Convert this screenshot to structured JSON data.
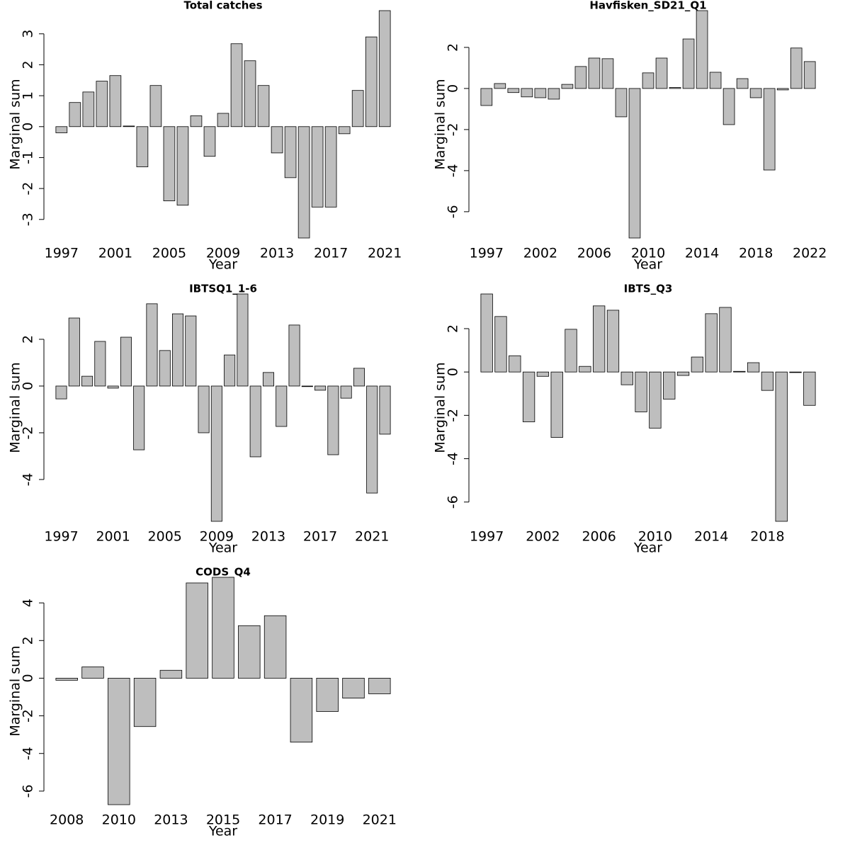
{
  "chart_data": [
    {
      "type": "bar",
      "title": "Total catches",
      "x_label": "Year",
      "y_label": "Marginal sum",
      "color": "#bebebe",
      "categories": [
        "1997",
        null,
        null,
        null,
        "2001",
        null,
        null,
        null,
        "2005",
        null,
        null,
        null,
        "2009",
        null,
        null,
        null,
        "2013",
        null,
        null,
        null,
        "2017",
        null,
        null,
        null,
        "2021"
      ],
      "values": [
        -0.2,
        0.78,
        1.12,
        1.47,
        1.65,
        0.02,
        -1.3,
        1.33,
        -2.4,
        -2.54,
        0.35,
        -0.96,
        0.43,
        2.68,
        2.13,
        1.33,
        -0.85,
        -1.65,
        -3.6,
        -2.6,
        -2.6,
        -0.23,
        1.17,
        2.9,
        3.75
      ],
      "ylim": [
        -3.6,
        3.75
      ],
      "yticks": [
        -3,
        -2,
        -1,
        0,
        1,
        2,
        3
      ]
    },
    {
      "type": "bar",
      "title": "Havfisken_SD21_Q1",
      "x_label": "Year",
      "y_label": "Marginal sum",
      "color": "#bebebe",
      "categories": [
        "1997",
        null,
        null,
        null,
        "2002",
        null,
        null,
        null,
        "2006",
        null,
        null,
        null,
        "2010",
        null,
        null,
        null,
        "2014",
        null,
        null,
        null,
        "2018",
        null,
        null,
        null,
        "2022"
      ],
      "values": [
        -0.83,
        0.24,
        -0.2,
        -0.41,
        -0.45,
        -0.52,
        0.2,
        1.07,
        1.48,
        1.45,
        -1.38,
        -7.28,
        0.76,
        1.48,
        0.05,
        2.41,
        3.79,
        0.79,
        -1.76,
        0.48,
        -0.45,
        -3.97,
        -0.07,
        1.97,
        1.31
      ],
      "ylim": [
        -7.28,
        3.79
      ],
      "yticks": [
        -6,
        -4,
        -2,
        0,
        2
      ]
    },
    {
      "type": "bar",
      "title": "IBTSQ1_1-6",
      "x_label": "Year",
      "y_label": "Marginal sum",
      "color": "#bebebe",
      "categories": [
        "1997",
        null,
        null,
        null,
        "2001",
        null,
        null,
        null,
        "2005",
        null,
        null,
        null,
        "2009",
        null,
        null,
        null,
        "2013",
        null,
        null,
        null,
        "2017",
        null,
        null,
        null,
        "2021",
        null
      ],
      "values": [
        -0.55,
        2.91,
        0.42,
        1.91,
        -0.09,
        2.09,
        -2.73,
        3.52,
        1.52,
        3.09,
        3.0,
        -2.0,
        -5.79,
        1.33,
        3.94,
        -3.03,
        0.58,
        -1.73,
        2.61,
        -0.02,
        -0.18,
        -2.94,
        -0.52,
        0.76,
        -4.58,
        -2.06
      ],
      "ylim": [
        -5.79,
        3.94
      ],
      "yticks": [
        -4,
        -2,
        0,
        2
      ]
    },
    {
      "type": "bar",
      "title": "IBTS_Q3",
      "x_label": "Year",
      "y_label": "Marginal sum",
      "color": "#bebebe",
      "categories": [
        "1997",
        null,
        null,
        null,
        "2002",
        null,
        null,
        null,
        "2006",
        null,
        null,
        null,
        "2010",
        null,
        null,
        null,
        "2014",
        null,
        null,
        null,
        "2018",
        null,
        null,
        null
      ],
      "values": [
        3.6,
        2.56,
        0.75,
        -2.3,
        -0.2,
        -3.02,
        1.97,
        0.26,
        3.05,
        2.85,
        -0.59,
        -1.84,
        -2.59,
        -1.25,
        -0.16,
        0.69,
        2.69,
        2.98,
        0.03,
        0.43,
        -0.85,
        -6.89,
        -0.01,
        -1.54
      ],
      "ylim": [
        -6.89,
        3.6
      ],
      "yticks": [
        -6,
        -4,
        -2,
        0,
        2
      ]
    },
    {
      "type": "bar",
      "title": "CODS_Q4",
      "x_label": "Year",
      "y_label": "Marginal sum",
      "color": "#bebebe",
      "categories": [
        "2008",
        null,
        "2010",
        null,
        "2013",
        null,
        "2015",
        null,
        "2017",
        null,
        "2019",
        null,
        "2021"
      ],
      "values": [
        -0.11,
        0.6,
        -6.72,
        -2.57,
        0.42,
        5.06,
        5.36,
        2.79,
        3.32,
        -3.4,
        -1.77,
        -1.06,
        -0.83
      ],
      "ylim": [
        -6.72,
        5.36
      ],
      "yticks": [
        -6,
        -4,
        -2,
        0,
        2,
        4
      ]
    }
  ]
}
